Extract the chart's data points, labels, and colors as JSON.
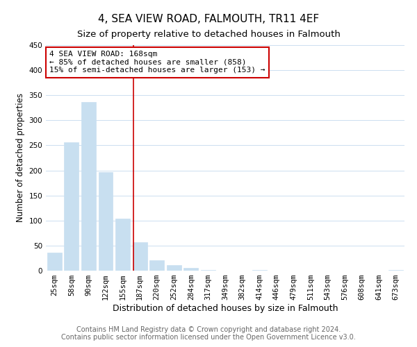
{
  "title": "4, SEA VIEW ROAD, FALMOUTH, TR11 4EF",
  "subtitle": "Size of property relative to detached houses in Falmouth",
  "xlabel": "Distribution of detached houses by size in Falmouth",
  "ylabel": "Number of detached properties",
  "bar_labels": [
    "25sqm",
    "58sqm",
    "90sqm",
    "122sqm",
    "155sqm",
    "187sqm",
    "220sqm",
    "252sqm",
    "284sqm",
    "317sqm",
    "349sqm",
    "382sqm",
    "414sqm",
    "446sqm",
    "479sqm",
    "511sqm",
    "543sqm",
    "576sqm",
    "608sqm",
    "641sqm",
    "673sqm"
  ],
  "bar_values": [
    36,
    256,
    336,
    197,
    104,
    57,
    21,
    11,
    5,
    2,
    0,
    0,
    1,
    0,
    0,
    0,
    0,
    0,
    0,
    0,
    2
  ],
  "bar_color": "#c8dff0",
  "bar_edge_color": "#c8dff0",
  "vline_x": 4.62,
  "vline_color": "#cc0000",
  "annotation_line1": "4 SEA VIEW ROAD: 168sqm",
  "annotation_line2": "← 85% of detached houses are smaller (858)",
  "annotation_line3": "15% of semi-detached houses are larger (153) →",
  "annotation_box_edgecolor": "#cc0000",
  "annotation_box_facecolor": "#ffffff",
  "ylim": [
    0,
    450
  ],
  "yticks": [
    0,
    50,
    100,
    150,
    200,
    250,
    300,
    350,
    400,
    450
  ],
  "footer_line1": "Contains HM Land Registry data © Crown copyright and database right 2024.",
  "footer_line2": "Contains public sector information licensed under the Open Government Licence v3.0.",
  "background_color": "#ffffff",
  "grid_color": "#ccdff0",
  "title_fontsize": 11,
  "subtitle_fontsize": 9.5,
  "xlabel_fontsize": 9,
  "ylabel_fontsize": 8.5,
  "tick_fontsize": 7.5,
  "annotation_fontsize": 8,
  "footer_fontsize": 7
}
